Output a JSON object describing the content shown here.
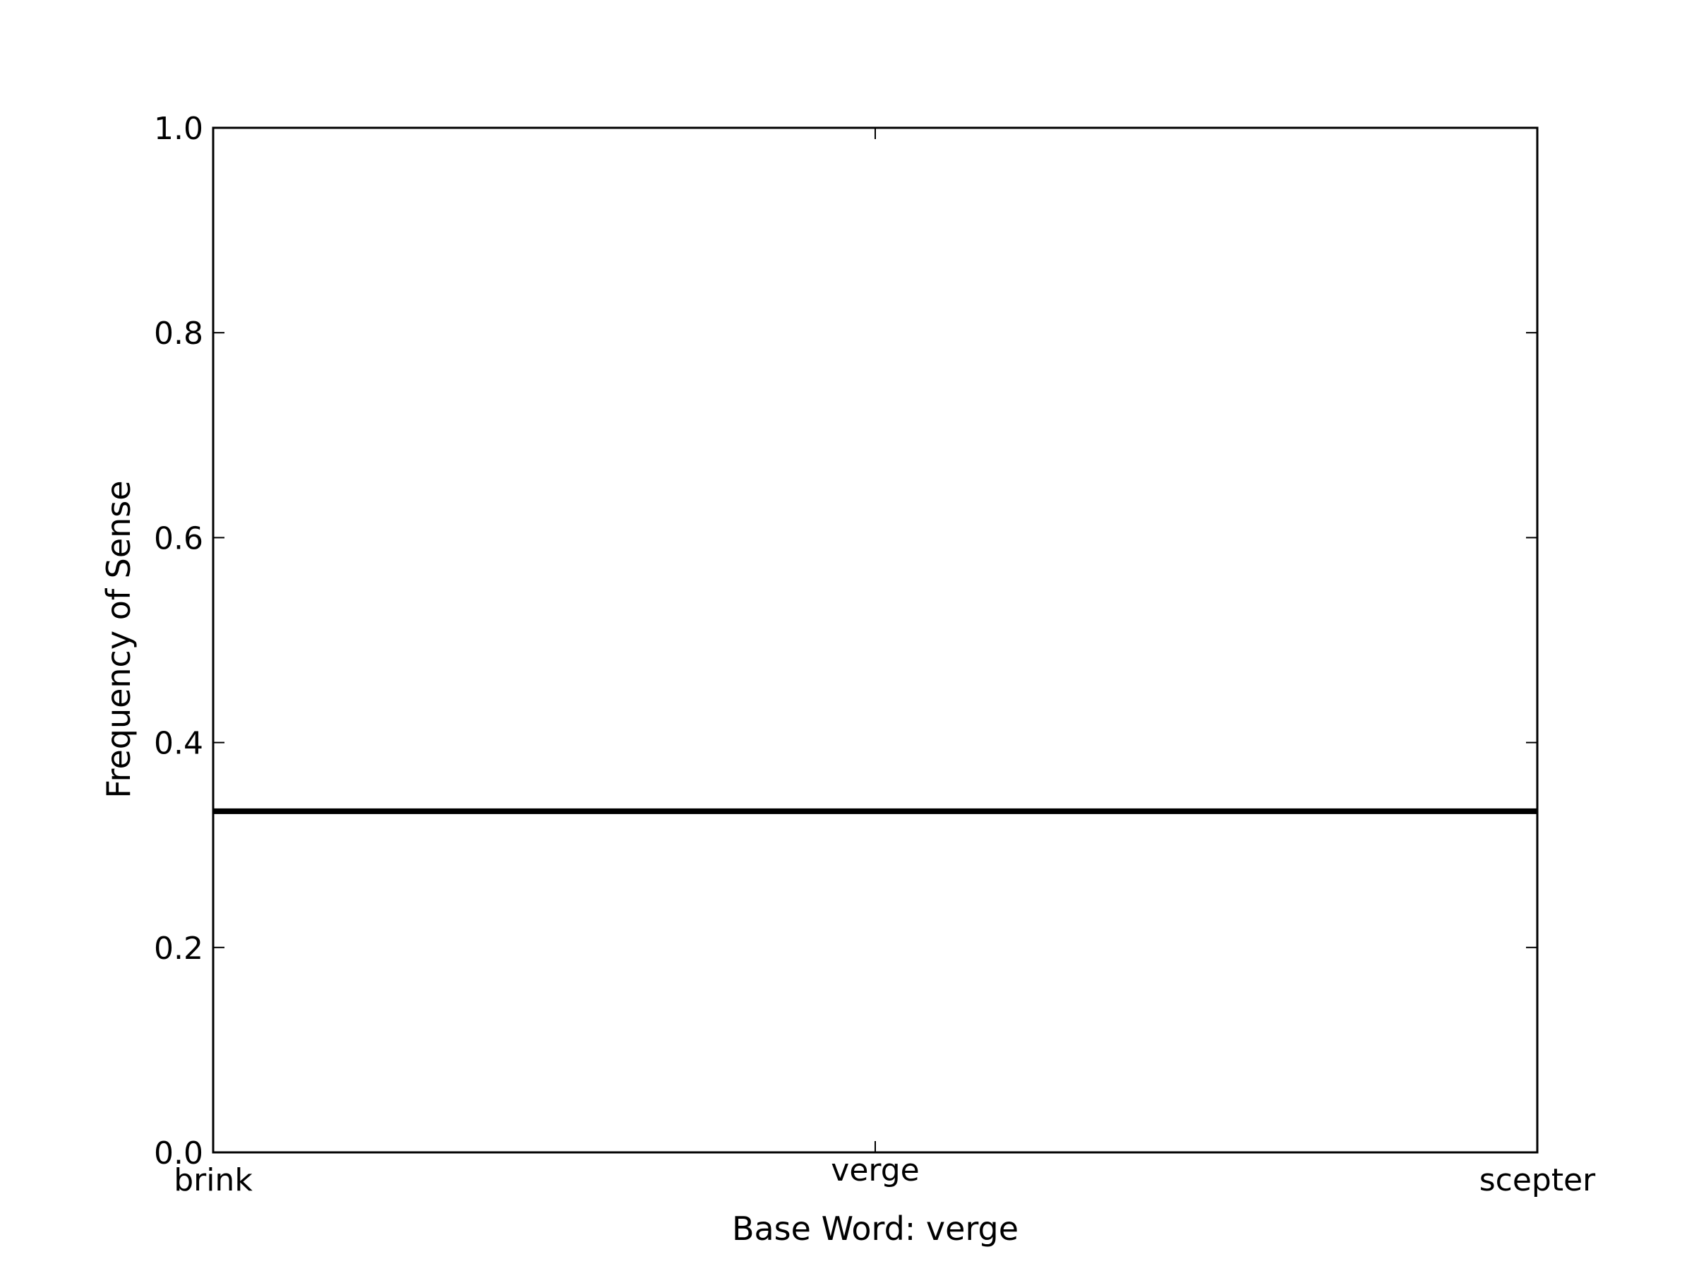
{
  "chart_data": {
    "type": "line",
    "title": "",
    "xlabel": "Base Word: verge",
    "ylabel": "Frequency of Sense",
    "categories": [
      "brink",
      "verge",
      "scepter"
    ],
    "series": [
      {
        "values": [
          0.333,
          0.333,
          0.333
        ],
        "color": "#000000"
      }
    ],
    "ylim": [
      0.0,
      1.0
    ],
    "yticks": [
      "0.0",
      "0.2",
      "0.4",
      "0.6",
      "0.8",
      "1.0"
    ],
    "grid": false
  }
}
